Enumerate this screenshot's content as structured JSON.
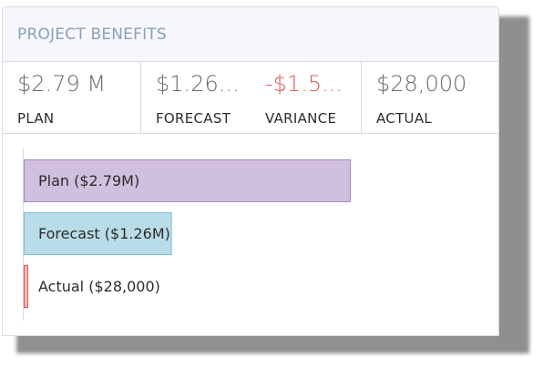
{
  "panel": {
    "title": "PROJECT BENEFITS"
  },
  "stats": {
    "plan": {
      "value": "$2.79 M",
      "label": "PLAN"
    },
    "forecast": {
      "value": "$1.26...",
      "label": "FORECAST"
    },
    "variance": {
      "value": "-$1.5...",
      "label": "VARIANCE"
    },
    "actual": {
      "value": "$28,000",
      "label": "ACTUAL"
    }
  },
  "colors": {
    "plan": "#d1bfdf",
    "plan_border": "#a487c2",
    "forecast": "#b9dde8",
    "forecast_border": "#7fbfd2",
    "actual": "#f4b8b8",
    "actual_border": "#d95a5a",
    "negative": "#e05a5a"
  },
  "chart_data": {
    "type": "bar",
    "orientation": "horizontal",
    "categories": [
      "Plan ($2.79M)",
      "Forecast ($1.26M)",
      "Actual ($28,000)"
    ],
    "values": [
      2790000,
      1260000,
      28000
    ],
    "xlim": [
      0,
      3500000
    ],
    "grid": false
  }
}
